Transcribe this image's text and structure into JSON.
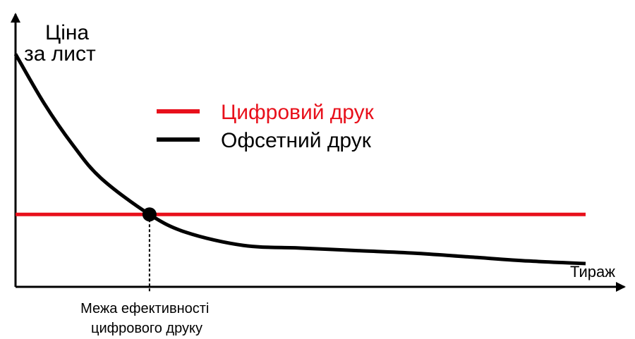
{
  "chart_data": {
    "type": "line",
    "ylabel_lines": [
      "Ціна",
      "за лист"
    ],
    "xlabel": "Тираж",
    "legend": {
      "placement": "top-center"
    },
    "annotation_lines": [
      "Межа ефективності",
      "цифрового друку"
    ],
    "xlim": [
      0,
      10
    ],
    "ylim": [
      0,
      10
    ],
    "series": [
      {
        "name": "Цифровий друк",
        "color": "#e8101b",
        "x": [
          0,
          10
        ],
        "y": [
          2.8,
          2.8
        ]
      },
      {
        "name": "Офсетний друк",
        "color": "#000000",
        "x": [
          0,
          0.5,
          1,
          1.5,
          2.35,
          3,
          4,
          5,
          6,
          7,
          8,
          9,
          10
        ],
        "y": [
          9.0,
          7.1,
          5.5,
          4.2,
          2.8,
          2.1,
          1.6,
          1.5,
          1.4,
          1.3,
          1.15,
          1.0,
          0.9
        ]
      }
    ],
    "intersection": {
      "x": 2.35,
      "y": 2.8
    }
  }
}
